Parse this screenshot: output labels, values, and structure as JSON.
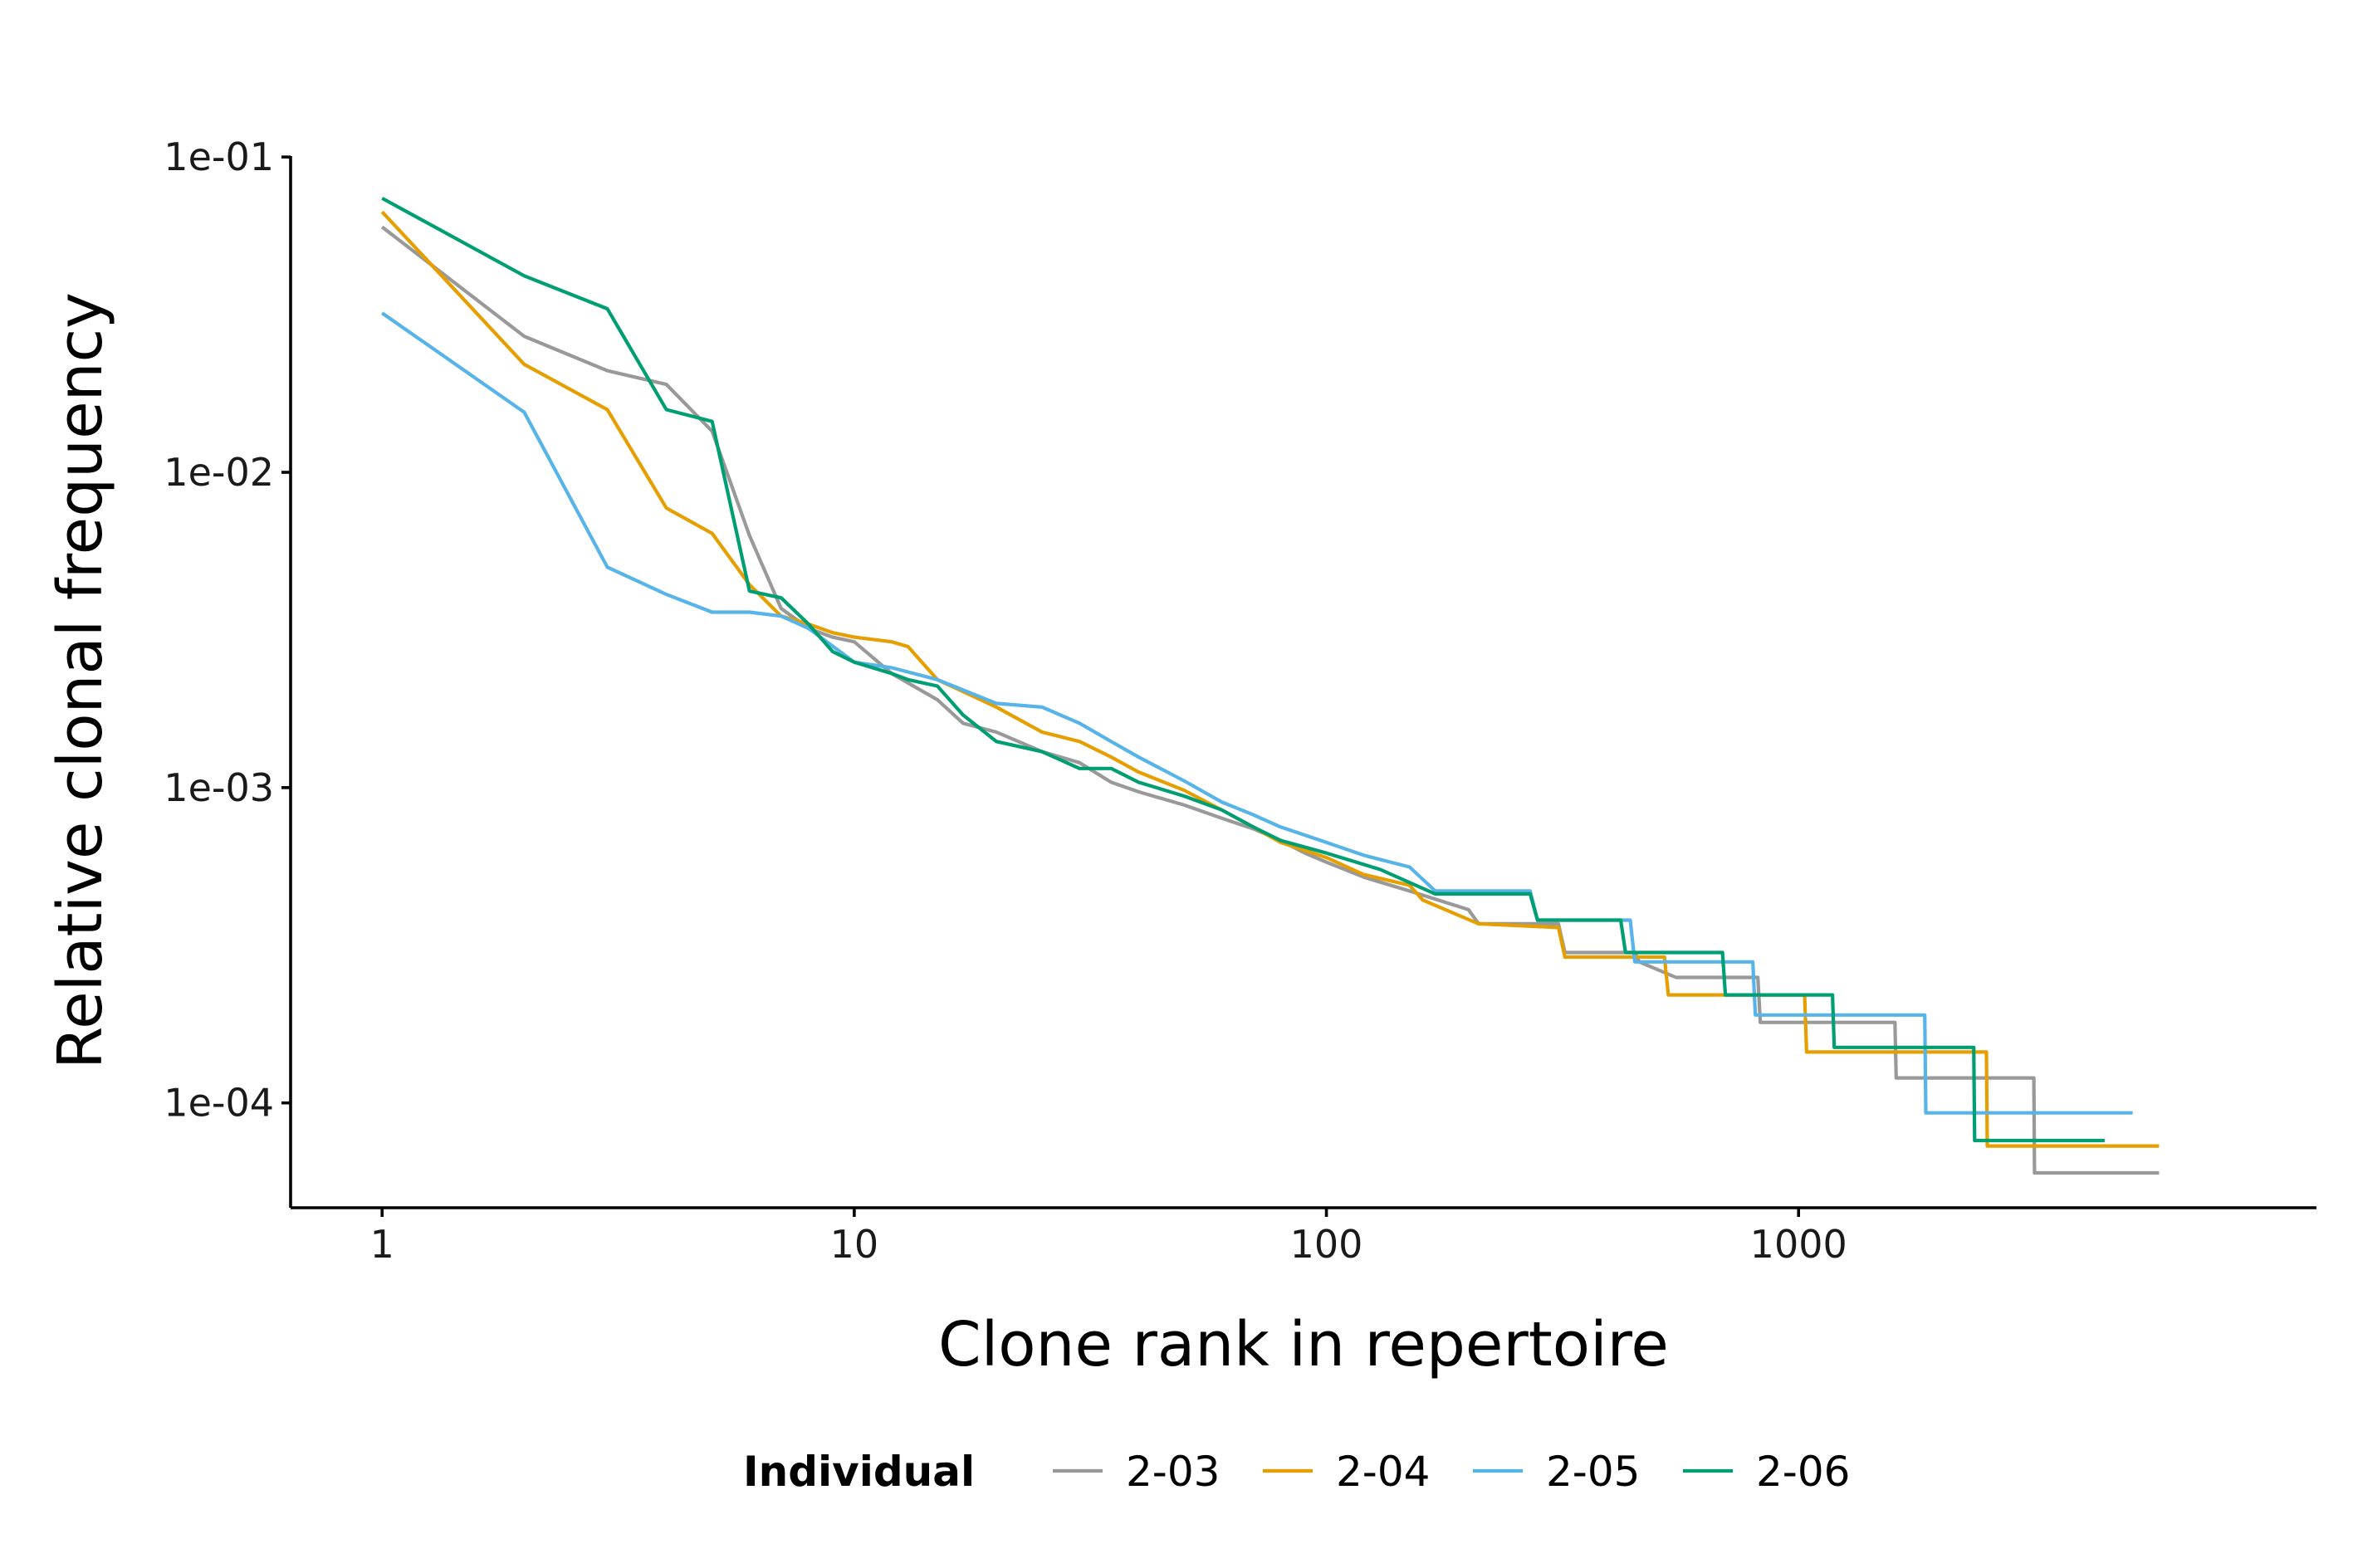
{
  "chart_data": {
    "type": "line",
    "xlabel": "Clone rank in repertoire",
    "ylabel": "Relative clonal frequency",
    "x_scale": "log10",
    "y_scale": "log10",
    "xlim": [
      0.64,
      12500
    ],
    "ylim": [
      4.65e-05,
      0.107
    ],
    "x_ticks": [
      {
        "value": 1,
        "label": "1"
      },
      {
        "value": 10,
        "label": "10"
      },
      {
        "value": 100,
        "label": "100"
      },
      {
        "value": 1000,
        "label": "1000"
      }
    ],
    "y_ticks": [
      {
        "value": 0.1,
        "label": "1e-01"
      },
      {
        "value": 0.01,
        "label": "1e-02"
      },
      {
        "value": 0.001,
        "label": "1e-03"
      },
      {
        "value": 0.0001,
        "label": "1e-04"
      }
    ],
    "grid": false,
    "legend": {
      "title": "Individual",
      "position": "bottom"
    },
    "series": [
      {
        "name": "2-03",
        "color": "#999999",
        "x": [
          1,
          2,
          3,
          4,
          5,
          6,
          7,
          8,
          9,
          10,
          12,
          15,
          17,
          20,
          25,
          30,
          35,
          40,
          50,
          60,
          70,
          80,
          90,
          100,
          120,
          150,
          200,
          210,
          310,
          320,
          450,
          460,
          550,
          820,
          830,
          1600,
          1610,
          3150,
          3160,
          5800
        ],
        "y": [
          0.06,
          0.027,
          0.021,
          0.019,
          0.0135,
          0.0063,
          0.0037,
          0.0032,
          0.003,
          0.0029,
          0.0023,
          0.0019,
          0.0016,
          0.0015,
          0.0013,
          0.0012,
          0.00104,
          0.00097,
          0.00088,
          0.0008,
          0.00074,
          0.00068,
          0.00062,
          0.00058,
          0.00052,
          0.00047,
          0.00041,
          0.00037,
          0.00037,
          0.0003,
          0.0003,
          0.00028,
          0.00025,
          0.00025,
          0.00018,
          0.00018,
          0.00012,
          0.00012,
          6e-05,
          6e-05
        ]
      },
      {
        "name": "2-04",
        "color": "#E69F00",
        "x": [
          1,
          2,
          3,
          4,
          5,
          6,
          7,
          8,
          9,
          10,
          12,
          13,
          15,
          20,
          25,
          30,
          35,
          40,
          50,
          60,
          70,
          80,
          100,
          120,
          150,
          160,
          210,
          310,
          320,
          520,
          530,
          1030,
          1040,
          2500,
          2510,
          5800
        ],
        "y": [
          0.067,
          0.022,
          0.0158,
          0.0077,
          0.0064,
          0.0044,
          0.0035,
          0.0033,
          0.0031,
          0.003,
          0.0029,
          0.0028,
          0.0022,
          0.0018,
          0.0015,
          0.0014,
          0.00125,
          0.00112,
          0.00098,
          0.00085,
          0.00075,
          0.00067,
          0.0006,
          0.00053,
          0.00049,
          0.00044,
          0.00037,
          0.00036,
          0.00029,
          0.00029,
          0.00022,
          0.00022,
          0.000145,
          0.000145,
          7.3e-05,
          7.3e-05
        ]
      },
      {
        "name": "2-05",
        "color": "#56B4E9",
        "x": [
          1,
          2,
          3,
          4,
          5,
          6,
          7,
          8,
          10,
          12,
          15,
          20,
          25,
          30,
          35,
          40,
          50,
          60,
          70,
          80,
          100,
          120,
          150,
          170,
          270,
          280,
          440,
          450,
          800,
          810,
          1850,
          1860,
          5100
        ],
        "y": [
          0.032,
          0.0155,
          0.005,
          0.0041,
          0.0036,
          0.0036,
          0.0035,
          0.0032,
          0.0025,
          0.0024,
          0.0022,
          0.00185,
          0.0018,
          0.0016,
          0.0014,
          0.00125,
          0.00105,
          0.0009,
          0.00082,
          0.00075,
          0.00067,
          0.00061,
          0.00056,
          0.00047,
          0.00047,
          0.00038,
          0.00038,
          0.00028,
          0.00028,
          0.00019,
          0.00019,
          9.3e-05,
          9.3e-05
        ]
      },
      {
        "name": "2-06",
        "color": "#009E73",
        "x": [
          1,
          2,
          3,
          4,
          5,
          6,
          7,
          8,
          9,
          10,
          12,
          13,
          15,
          17,
          20,
          25,
          30,
          35,
          40,
          50,
          60,
          70,
          80,
          100,
          130,
          170,
          270,
          280,
          420,
          430,
          690,
          700,
          1180,
          1190,
          2350,
          2360,
          4450
        ],
        "y": [
          0.074,
          0.042,
          0.033,
          0.0158,
          0.0145,
          0.0042,
          0.004,
          0.0033,
          0.0027,
          0.0025,
          0.0023,
          0.0022,
          0.0021,
          0.0017,
          0.0014,
          0.0013,
          0.00115,
          0.00115,
          0.00104,
          0.00094,
          0.00085,
          0.00075,
          0.00068,
          0.00062,
          0.00055,
          0.00046,
          0.00046,
          0.00038,
          0.00038,
          0.0003,
          0.0003,
          0.00022,
          0.00022,
          0.00015,
          0.00015,
          7.6e-05,
          7.6e-05
        ]
      }
    ]
  }
}
